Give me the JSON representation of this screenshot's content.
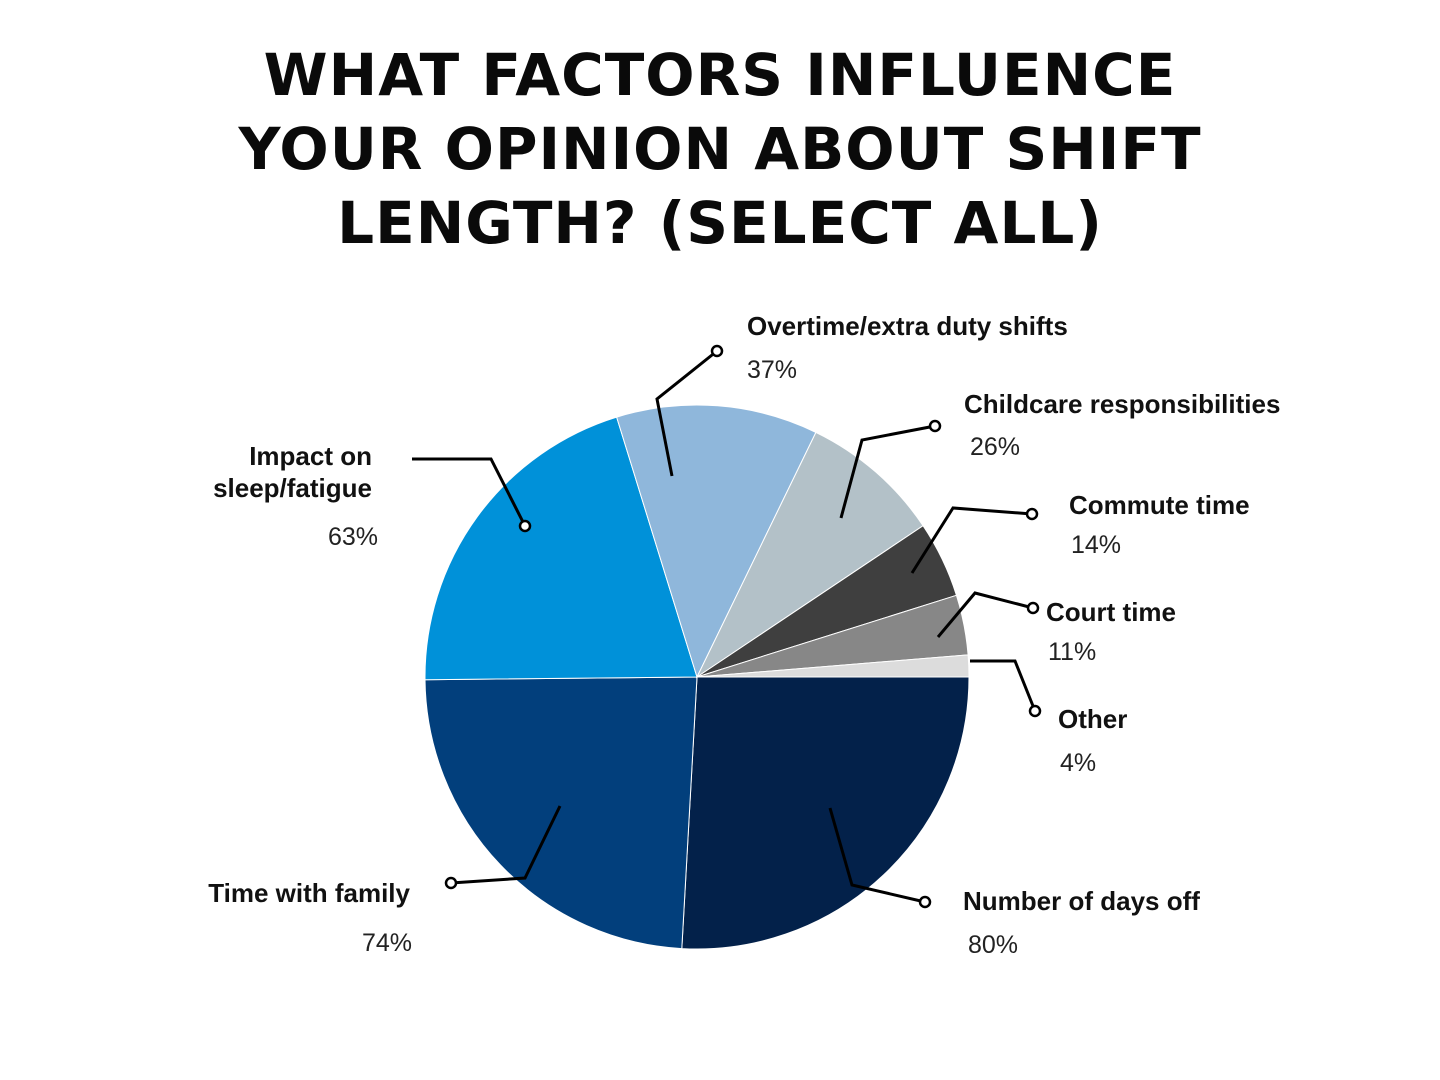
{
  "chart_data": {
    "type": "pie",
    "title_lines": [
      "WHAT FACTORS INFLUENCE",
      "YOUR OPINION ABOUT SHIFT",
      "LENGTH? (SELECT ALL)"
    ],
    "slices": [
      {
        "label": "Number of days off",
        "value_label": "80%",
        "value": 80,
        "color": "#03214a"
      },
      {
        "label": "Time with family",
        "value_label": "74%",
        "value": 74,
        "color": "#023f7c"
      },
      {
        "label": "Impact on sleep/fatigue",
        "label_lines": [
          "Impact on",
          "sleep/fatigue"
        ],
        "value_label": "63%",
        "value": 63,
        "color": "#0091d9"
      },
      {
        "label": "Overtime/extra duty shifts",
        "value_label": "37%",
        "value": 37,
        "color": "#8fb7db"
      },
      {
        "label": "Childcare responsibilities",
        "value_label": "26%",
        "value": 26,
        "color": "#b3c1c8"
      },
      {
        "label": "Commute time",
        "value_label": "14%",
        "value": 14,
        "color": "#3f3f3f"
      },
      {
        "label": "Court time",
        "value_label": "11%",
        "value": 11,
        "color": "#878787"
      },
      {
        "label": "Other",
        "value_label": "4%",
        "value": 4,
        "color": "#dcdcdc"
      }
    ],
    "legend": "none"
  }
}
